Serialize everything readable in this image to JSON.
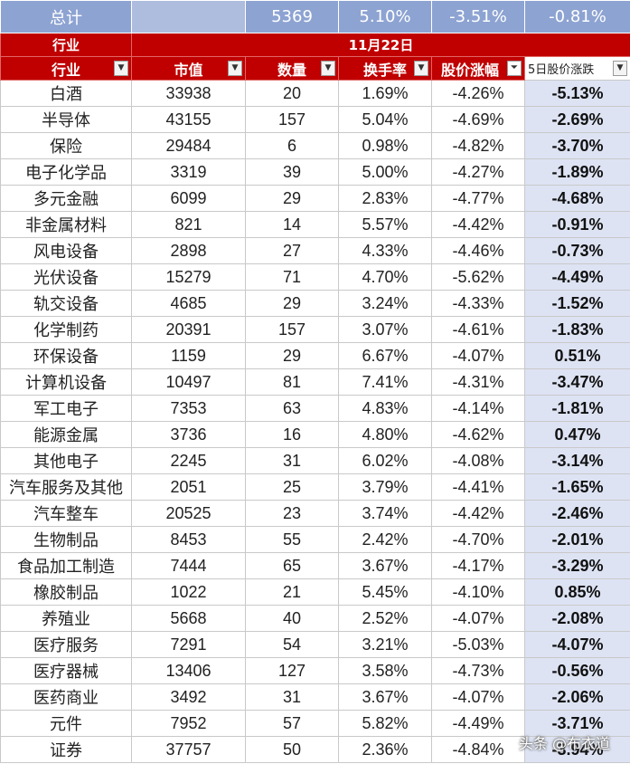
{
  "total": {
    "label": "总计",
    "cap": "",
    "count": "5369",
    "turnover": "5.10%",
    "change": "-3.51%",
    "change5": "-0.81%"
  },
  "header": {
    "industry_label": "行业",
    "date_label": "11月22日"
  },
  "columns": {
    "industry": "行业",
    "cap": "市值",
    "count": "数量",
    "turnover": "换手率",
    "change": "股价涨幅",
    "change5": "5日股价涨跌"
  },
  "rows": [
    {
      "name": "白酒",
      "cap": "33938",
      "count": "20",
      "turnover": "1.69%",
      "change": "-4.26%",
      "change5": "-5.13%"
    },
    {
      "name": "半导体",
      "cap": "43155",
      "count": "157",
      "turnover": "5.04%",
      "change": "-4.69%",
      "change5": "-2.69%"
    },
    {
      "name": "保险",
      "cap": "29484",
      "count": "6",
      "turnover": "0.98%",
      "change": "-4.82%",
      "change5": "-3.70%"
    },
    {
      "name": "电子化学品",
      "cap": "3319",
      "count": "39",
      "turnover": "5.00%",
      "change": "-4.27%",
      "change5": "-1.89%"
    },
    {
      "name": "多元金融",
      "cap": "6099",
      "count": "29",
      "turnover": "2.83%",
      "change": "-4.77%",
      "change5": "-4.68%"
    },
    {
      "name": "非金属材料",
      "cap": "821",
      "count": "14",
      "turnover": "5.57%",
      "change": "-4.42%",
      "change5": "-0.91%"
    },
    {
      "name": "风电设备",
      "cap": "2898",
      "count": "27",
      "turnover": "4.33%",
      "change": "-4.46%",
      "change5": "-0.73%"
    },
    {
      "name": "光伏设备",
      "cap": "15279",
      "count": "71",
      "turnover": "4.70%",
      "change": "-5.62%",
      "change5": "-4.49%"
    },
    {
      "name": "轨交设备",
      "cap": "4685",
      "count": "29",
      "turnover": "3.24%",
      "change": "-4.33%",
      "change5": "-1.52%"
    },
    {
      "name": "化学制药",
      "cap": "20391",
      "count": "157",
      "turnover": "3.07%",
      "change": "-4.61%",
      "change5": "-1.83%"
    },
    {
      "name": "环保设备",
      "cap": "1159",
      "count": "29",
      "turnover": "6.67%",
      "change": "-4.07%",
      "change5": "0.51%"
    },
    {
      "name": "计算机设备",
      "cap": "10497",
      "count": "81",
      "turnover": "7.41%",
      "change": "-4.31%",
      "change5": "-3.47%"
    },
    {
      "name": "军工电子",
      "cap": "7353",
      "count": "63",
      "turnover": "4.83%",
      "change": "-4.14%",
      "change5": "-1.81%"
    },
    {
      "name": "能源金属",
      "cap": "3736",
      "count": "16",
      "turnover": "4.80%",
      "change": "-4.62%",
      "change5": "0.47%"
    },
    {
      "name": "其他电子",
      "cap": "2245",
      "count": "31",
      "turnover": "6.02%",
      "change": "-4.08%",
      "change5": "-3.14%"
    },
    {
      "name": "汽车服务及其他",
      "cap": "2051",
      "count": "25",
      "turnover": "3.79%",
      "change": "-4.41%",
      "change5": "-1.65%"
    },
    {
      "name": "汽车整车",
      "cap": "20525",
      "count": "23",
      "turnover": "3.74%",
      "change": "-4.42%",
      "change5": "-2.46%"
    },
    {
      "name": "生物制品",
      "cap": "8453",
      "count": "55",
      "turnover": "2.42%",
      "change": "-4.70%",
      "change5": "-2.01%"
    },
    {
      "name": "食品加工制造",
      "cap": "7444",
      "count": "65",
      "turnover": "3.67%",
      "change": "-4.17%",
      "change5": "-3.29%"
    },
    {
      "name": "橡胶制品",
      "cap": "1022",
      "count": "21",
      "turnover": "5.45%",
      "change": "-4.10%",
      "change5": "0.85%"
    },
    {
      "name": "养殖业",
      "cap": "5668",
      "count": "40",
      "turnover": "2.52%",
      "change": "-4.07%",
      "change5": "-2.08%"
    },
    {
      "name": "医疗服务",
      "cap": "7291",
      "count": "54",
      "turnover": "3.21%",
      "change": "-5.03%",
      "change5": "-4.07%"
    },
    {
      "name": "医疗器械",
      "cap": "13406",
      "count": "127",
      "turnover": "3.58%",
      "change": "-4.73%",
      "change5": "-0.56%"
    },
    {
      "name": "医药商业",
      "cap": "3492",
      "count": "31",
      "turnover": "3.67%",
      "change": "-4.07%",
      "change5": "-2.06%"
    },
    {
      "name": "元件",
      "cap": "7952",
      "count": "57",
      "turnover": "5.82%",
      "change": "-4.49%",
      "change5": "-3.71%"
    },
    {
      "name": "证券",
      "cap": "37757",
      "count": "50",
      "turnover": "2.36%",
      "change": "-4.84%",
      "change5": "-3.94%"
    }
  ],
  "icons": {
    "dropdown": "dropdown-arrow-icon",
    "filter_active": "filter-active-icon"
  },
  "colors": {
    "header_red": "#c00000",
    "total_blue": "#8da3d2",
    "highlight_col": "#dde3f3"
  },
  "watermark": "头条 @布衣道"
}
